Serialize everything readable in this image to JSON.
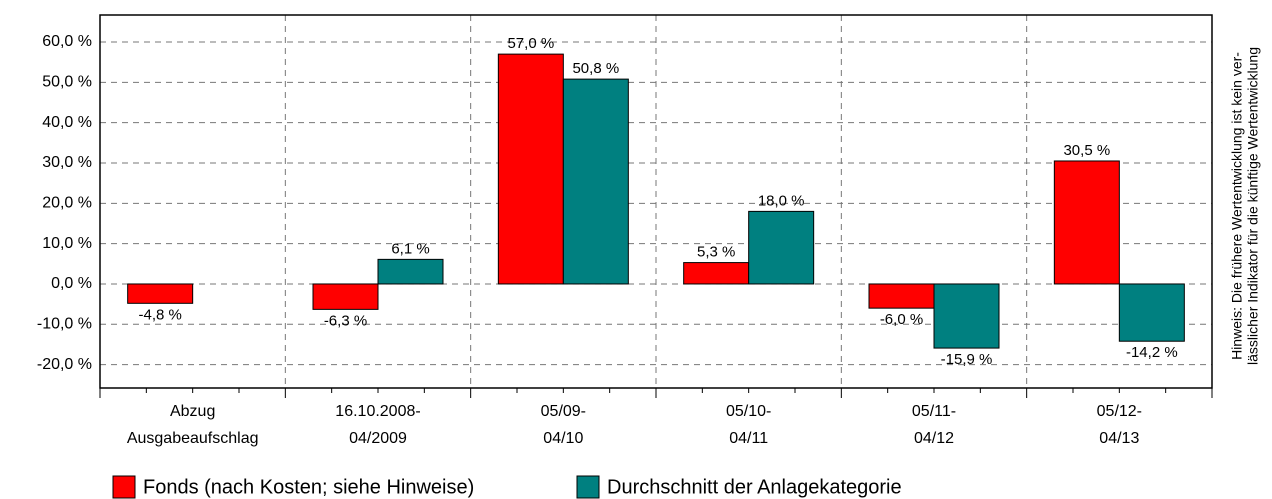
{
  "chart_data": {
    "type": "bar",
    "categories": [
      [
        "Abzug",
        "Ausgabeaufschlag"
      ],
      [
        "16.10.2008-",
        "04/2009"
      ],
      [
        "05/09-",
        "04/10"
      ],
      [
        "05/10-",
        "04/11"
      ],
      [
        "05/11-",
        "04/12"
      ],
      [
        "05/12-",
        "04/13"
      ]
    ],
    "series": [
      {
        "name": "Fonds (nach Kosten; siehe Hinweise)",
        "color": "#ff0000",
        "values": [
          -4.8,
          -6.3,
          57.0,
          5.3,
          -6.0,
          30.5
        ],
        "value_labels": [
          "-4,8 %",
          "-6,3 %",
          "57,0 %",
          "5,3 %",
          "-6,0 %",
          "30,5 %"
        ]
      },
      {
        "name": "Durchschnitt der Anlagekategorie",
        "color": "#008080",
        "values": [
          null,
          6.1,
          50.8,
          18.0,
          -15.9,
          -14.2
        ],
        "value_labels": [
          null,
          "6,1 %",
          "50,8 %",
          "18,0 %",
          "-15,9 %",
          "-14,2 %"
        ]
      }
    ],
    "ylim": [
      -25.8,
      66.7
    ],
    "yticks": [
      {
        "value": -20,
        "label": "-20,0 %"
      },
      {
        "value": -10,
        "label": "-10,0 %"
      },
      {
        "value": 0,
        "label": "0,0 %"
      },
      {
        "value": 10,
        "label": "10,0 %"
      },
      {
        "value": 20,
        "label": "20,0 %"
      },
      {
        "value": 30,
        "label": "30,0 %"
      },
      {
        "value": 40,
        "label": "40,0 %"
      },
      {
        "value": 50,
        "label": "50,0 %"
      },
      {
        "value": 60,
        "label": "60,0 %"
      }
    ],
    "grid": true,
    "note": [
      "Hinweis: Die frühere Wertentwicklung ist kein ver-",
      "lässlicher Indikator für die künftige Wertentwicklung"
    ]
  }
}
